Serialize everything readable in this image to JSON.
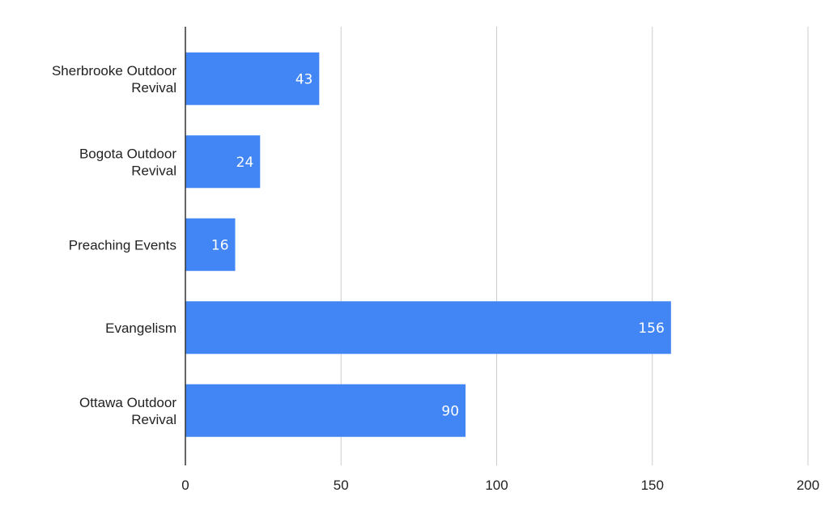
{
  "chart_data": {
    "type": "bar",
    "orientation": "horizontal",
    "categories": [
      [
        "Sherbrooke Outdoor",
        "Revival"
      ],
      [
        "Bogota Outdoor",
        "Revival"
      ],
      [
        "Preaching Events"
      ],
      [
        "Evangelism"
      ],
      [
        "Ottawa Outdoor",
        "Revival"
      ]
    ],
    "values": [
      43,
      24,
      16,
      156,
      90
    ],
    "data_labels": [
      "43",
      "24",
      "16",
      "156",
      "90"
    ],
    "xlim": [
      0,
      200
    ],
    "xticks": [
      0,
      50,
      100,
      150,
      200
    ],
    "xtick_labels": [
      "0",
      "50",
      "100",
      "150",
      "200"
    ],
    "grid": "vertical",
    "legend": "none",
    "colors": {
      "bar": "#4285f4",
      "grid": "#cccccc",
      "axis": "#333333",
      "data_label": "#ffffff",
      "text": "#222222"
    }
  }
}
